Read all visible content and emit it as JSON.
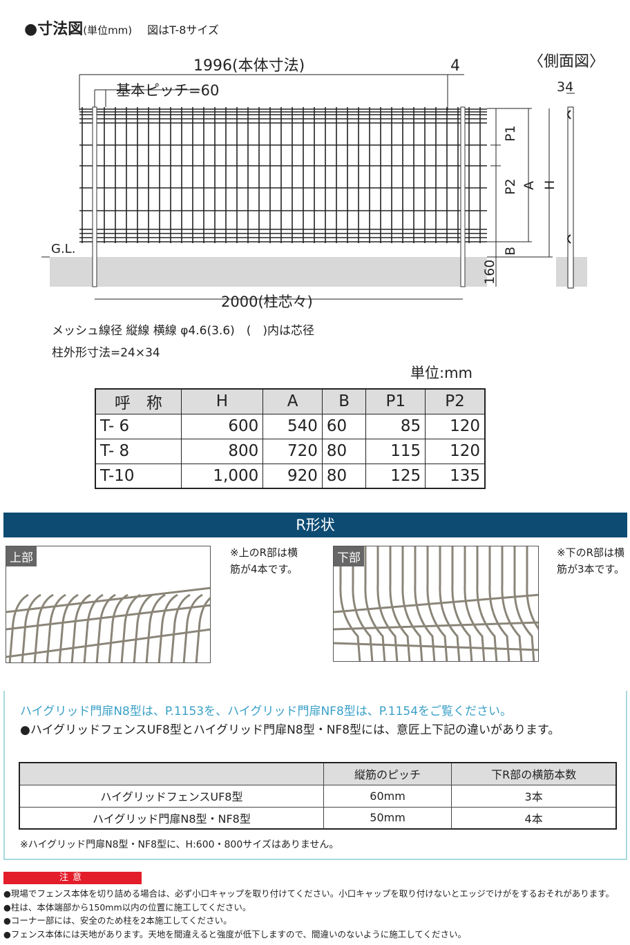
{
  "header": {
    "bullet": "●",
    "title": "寸法図",
    "unit": "(単位mm)",
    "subtitle": "図はT-8サイズ"
  },
  "diagram": {
    "body_width": "1996(本体寸法)",
    "gap": "4",
    "pitch": "基本ピッチ=60",
    "side_view": "〈側面図〉",
    "side_depth": "34",
    "gl": "G.L.",
    "post_pitch": "2000(柱芯々)",
    "embed": "160",
    "labels": [
      "P1",
      "P2",
      "A",
      "H",
      "B"
    ]
  },
  "specs": {
    "mesh": "メッシュ線径 縦線 横線 φ4.6(3.6)　(　)内は芯径",
    "post": "柱外形寸法=24×34"
  },
  "size_table": {
    "unit": "単位:mm",
    "headers": [
      "呼　称",
      "H",
      "A",
      "B",
      "P1",
      "P2"
    ],
    "rows": [
      [
        "T- 6",
        "600",
        "540",
        "60",
        "85",
        "120"
      ],
      [
        "T- 8",
        "800",
        "720",
        "80",
        "115",
        "120"
      ],
      [
        "T-10",
        "1,000",
        "920",
        "80",
        "125",
        "135"
      ]
    ]
  },
  "r_shape": {
    "title": "R形状",
    "top": {
      "label": "上部",
      "note": "※上のR部は横筋が4本です。"
    },
    "bottom": {
      "label": "下部",
      "note": "※下のR部は横筋が3本です。"
    }
  },
  "info": {
    "link": "ハイグリッド門扉N8型は、P.1153を、ハイグリッド門扉NF8型は、P.1154をご覧ください。",
    "para": "●ハイグリッドフェンスUF8型とハイグリッド門扉N8型・NF8型には、意匠上下記の違いがあります。",
    "table": {
      "headers": [
        "",
        "縦筋のピッチ",
        "下R部の横筋本数"
      ],
      "rows": [
        [
          "ハイグリッドフェンスUF8型",
          "60mm",
          "3本"
        ],
        [
          "ハイグリッド門扉N8型・NF8型",
          "50mm",
          "4本"
        ]
      ]
    },
    "footnote": "※ハイグリッド門扉N8型・NF8型に、H:600・800サイズはありません。"
  },
  "caution": {
    "title": "注意",
    "items": [
      "●現場でフェンス本体を切り詰める場合は、必ず小口キャップを取り付けてください。小口キャップを取り付けないとエッジでけがをするおそれがあります。",
      "●柱は、本体端部から150mm以内の位置に施工してください。",
      "●コーナー部には、安全のため柱を2本施工してください。",
      "●フェンス本体には天地があります。天地を間違えると強度が低下しますので、間違いのないように施工してください。"
    ]
  },
  "colors": {
    "header_bar": "#0d4b73",
    "caution": "#e31d2a",
    "link": "#3aa0c8",
    "box_border": "#a9d9dc"
  }
}
